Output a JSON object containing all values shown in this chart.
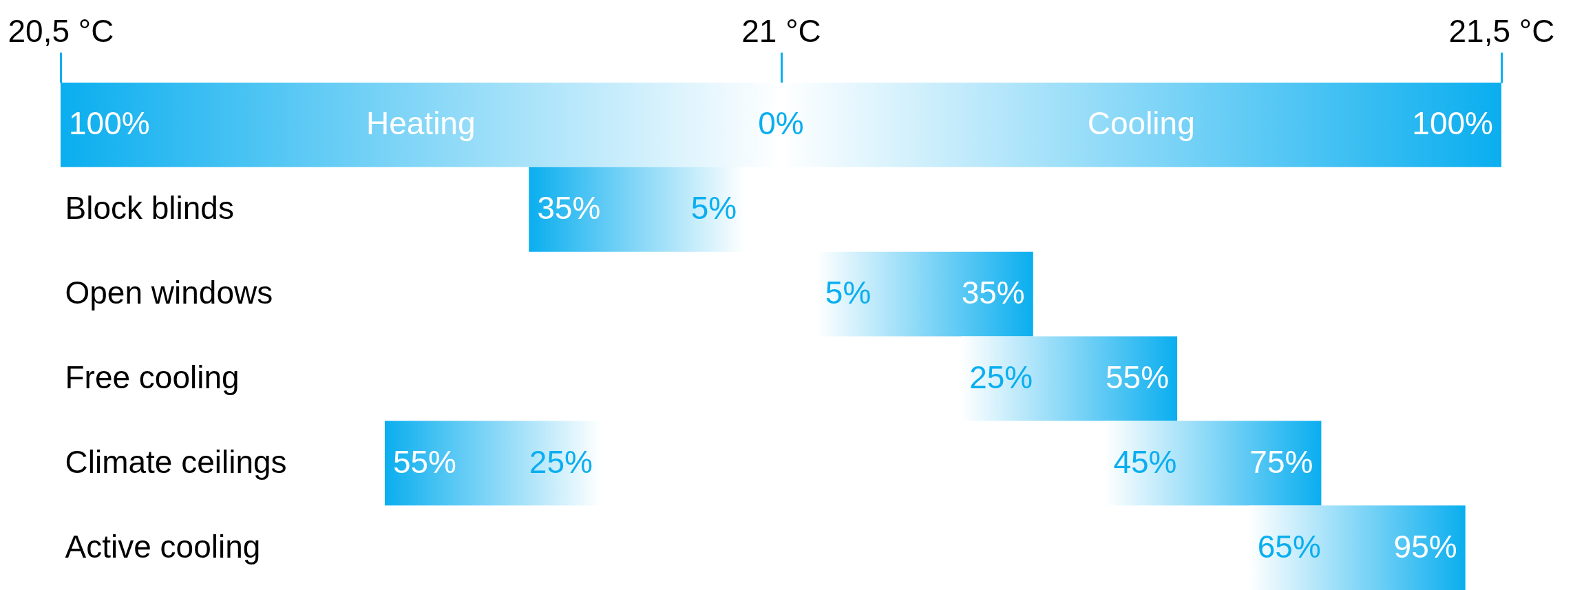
{
  "chart_data": {
    "type": "bar",
    "orientation": "horizontal",
    "categories": [
      null,
      "Block blinds",
      "Open windows",
      "Free cooling",
      "Climate ceilings",
      "Active cooling"
    ],
    "xlim": [
      20.5,
      21.5
    ],
    "xticks": [
      {
        "value": 20.5,
        "label": "20,5 °C"
      },
      {
        "value": 21,
        "label": "21 °C"
      },
      {
        "value": 21.5,
        "label": "21,5 °C"
      }
    ],
    "series": [
      {
        "color": "#0aaeef",
        "base": [
          20.5,
          20.825,
          null,
          null,
          20.725,
          null
        ],
        "values": [
          0.5,
          0.15,
          null,
          null,
          0.15,
          null
        ]
      },
      {
        "color": "#0aaeef",
        "base": [
          21,
          null,
          21.025,
          21.125,
          21.225,
          21.325
        ],
        "values": [
          0.5,
          null,
          0.15,
          0.15,
          0.15,
          0.15
        ]
      }
    ],
    "annotations": [
      "Heating",
      "Cooling",
      {
        "text": "100%",
        "x": 20.5
      },
      {
        "text": "0%",
        "x": 21.0
      },
      {
        "text": "100%",
        "x": 21.5
      },
      {
        "text": "35%",
        "x": 20.825,
        "y": "Block blinds"
      },
      {
        "text": "5%",
        "x": 20.975,
        "y": "Block blinds"
      },
      {
        "text": "5%",
        "x": 21.025,
        "y": "Open windows"
      },
      {
        "text": "35%",
        "x": 21.175,
        "y": "Open windows"
      },
      {
        "text": "25%",
        "x": 21.125,
        "y": "Free cooling"
      },
      {
        "text": "55%",
        "x": 21.275,
        "y": "Free cooling"
      },
      {
        "text": "55%",
        "x": 20.725,
        "y": "Climate ceilings"
      },
      {
        "text": "25%",
        "x": 20.875,
        "y": "Climate ceilings"
      },
      {
        "text": "45%",
        "x": 21.225,
        "y": "Climate ceilings"
      },
      {
        "text": "75%",
        "x": 21.375,
        "y": "Climate ceilings"
      },
      {
        "text": "65%",
        "x": 21.325,
        "y": "Active cooling"
      },
      {
        "text": "95%",
        "x": 21.475,
        "y": "Active cooling"
      }
    ],
    "grid": false
  }
}
